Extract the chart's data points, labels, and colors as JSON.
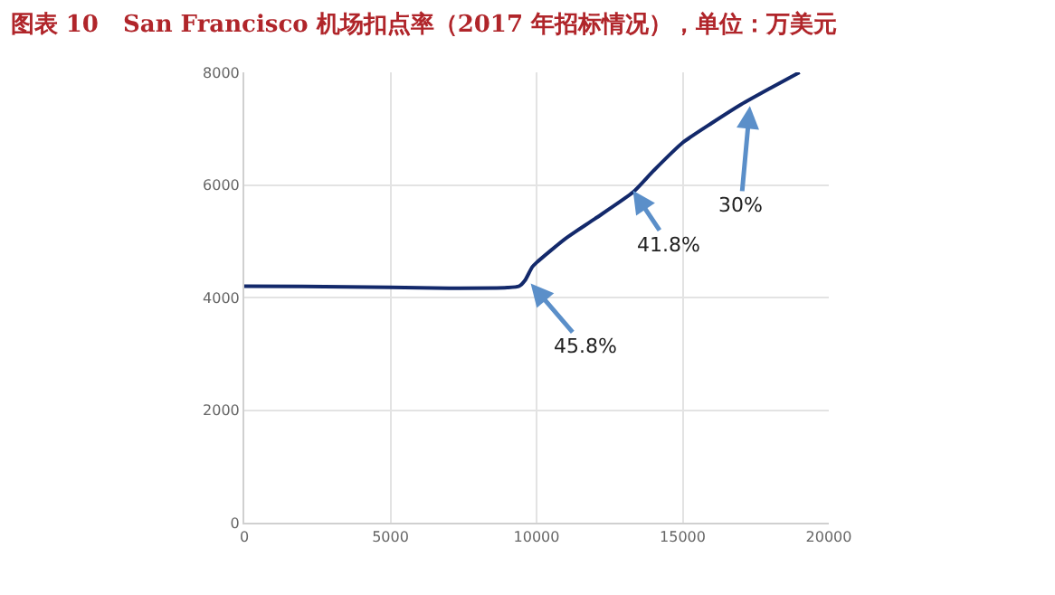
{
  "chart_data": {
    "type": "line",
    "title": "图表 10   San Francisco 机场扣点率（2017 年招标情况），单位：万美元",
    "x": [
      0,
      2000,
      5000,
      7000,
      9000,
      9400,
      9600,
      9850,
      10000,
      11000,
      12000,
      13300,
      14000,
      15000,
      16000,
      17000,
      18000,
      19000
    ],
    "series": [
      {
        "color": "#13296b",
        "values": [
          4200,
          4195,
          4180,
          4165,
          4175,
          4200,
          4300,
          4540,
          4620,
          5050,
          5400,
          5870,
          6250,
          6750,
          7100,
          7430,
          7720,
          8000
        ]
      }
    ],
    "xlim": [
      0,
      20000
    ],
    "xticks": [
      0,
      5000,
      10000,
      15000,
      20000
    ],
    "ylim": [
      0,
      8000
    ],
    "yticks": [
      0,
      2000,
      4000,
      6000,
      8000
    ],
    "grid": true,
    "legend": false,
    "marker": "none",
    "line_style": "solid",
    "annotations": [
      {
        "text": "45.8%",
        "x": 9800,
        "y": 4250
      },
      {
        "text": "41.8%",
        "x": 13300,
        "y": 5900
      },
      {
        "text": "30%",
        "x": 17300,
        "y": 7400
      }
    ]
  }
}
